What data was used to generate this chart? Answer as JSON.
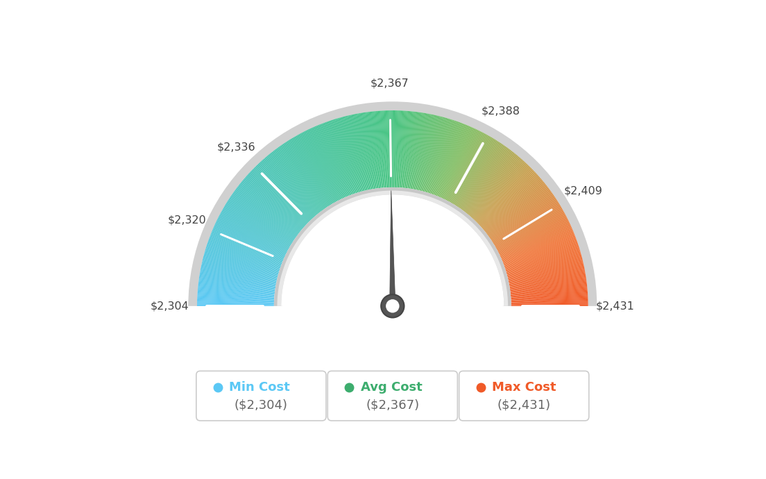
{
  "min_val": 2304,
  "avg_val": 2367,
  "max_val": 2431,
  "tick_labels": [
    "$2,304",
    "$2,320",
    "$2,336",
    "$2,367",
    "$2,388",
    "$2,409",
    "$2,431"
  ],
  "tick_values": [
    2304,
    2320,
    2336,
    2367,
    2388,
    2409,
    2431
  ],
  "legend_min_label": "Min Cost",
  "legend_avg_label": "Avg Cost",
  "legend_max_label": "Max Cost",
  "legend_min_val": "($2,304)",
  "legend_avg_val": "($2,367)",
  "legend_max_val": "($2,431)",
  "legend_min_color": "#5BC8F5",
  "legend_avg_color": "#3DAD6E",
  "legend_max_color": "#F05A28",
  "background_color": "#ffffff",
  "color_stops": [
    [
      0.0,
      [
        91,
        200,
        245
      ]
    ],
    [
      0.35,
      [
        72,
        196,
        160
      ]
    ],
    [
      0.5,
      [
        72,
        196,
        130
      ]
    ],
    [
      0.63,
      [
        130,
        190,
        100
      ]
    ],
    [
      0.75,
      [
        200,
        160,
        80
      ]
    ],
    [
      0.88,
      [
        240,
        120,
        60
      ]
    ],
    [
      1.0,
      [
        240,
        90,
        40
      ]
    ]
  ]
}
